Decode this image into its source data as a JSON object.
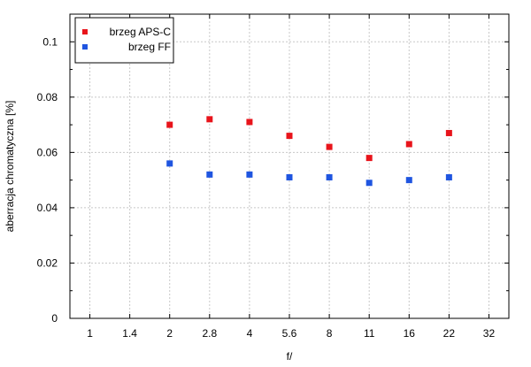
{
  "chart_data": {
    "type": "scatter",
    "title": "",
    "xlabel": "f/",
    "ylabel": "aberracja chromatyczna [%]",
    "x_scale": "categorical",
    "categories": [
      "1",
      "1.4",
      "2",
      "2.8",
      "4",
      "5.6",
      "8",
      "11",
      "16",
      "22",
      "32"
    ],
    "ylim": [
      0,
      0.11
    ],
    "y_ticks": [
      0,
      0.02,
      0.04,
      0.06,
      0.08,
      0.1
    ],
    "y_tick_labels": [
      "0",
      "0.02",
      "0.04",
      "0.06",
      "0.08",
      "0.1"
    ],
    "grid": true,
    "grid_style": "dotted",
    "legend_placement": "top-left",
    "series": [
      {
        "name": "brzeg APS-C",
        "color": "#e8141b",
        "points": [
          {
            "x": "2",
            "y": 0.07
          },
          {
            "x": "2.8",
            "y": 0.072
          },
          {
            "x": "4",
            "y": 0.071
          },
          {
            "x": "5.6",
            "y": 0.066
          },
          {
            "x": "8",
            "y": 0.062
          },
          {
            "x": "11",
            "y": 0.058
          },
          {
            "x": "16",
            "y": 0.063
          },
          {
            "x": "22",
            "y": 0.067
          }
        ]
      },
      {
        "name": "brzeg FF",
        "color": "#1f55e0",
        "points": [
          {
            "x": "2",
            "y": 0.056
          },
          {
            "x": "2.8",
            "y": 0.052
          },
          {
            "x": "4",
            "y": 0.052
          },
          {
            "x": "5.6",
            "y": 0.051
          },
          {
            "x": "8",
            "y": 0.051
          },
          {
            "x": "11",
            "y": 0.049
          },
          {
            "x": "16",
            "y": 0.05
          },
          {
            "x": "22",
            "y": 0.051
          }
        ]
      }
    ]
  }
}
